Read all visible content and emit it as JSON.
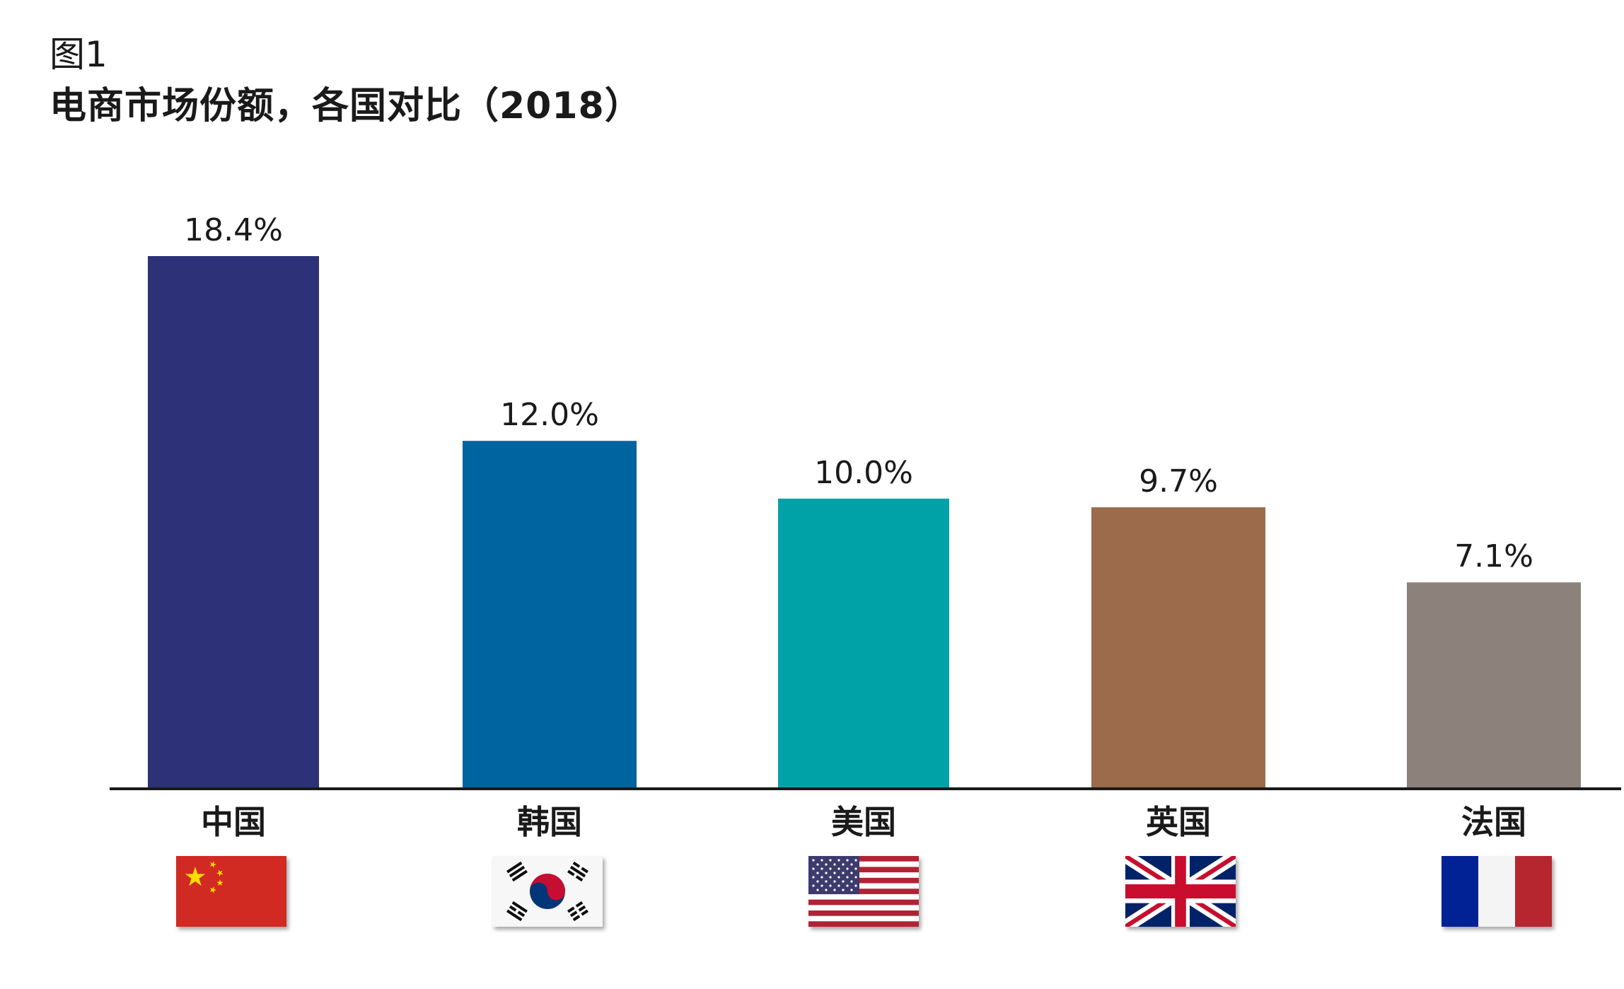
{
  "figure": {
    "label": "图1",
    "title": "电商市场份额，各国对比（2018）"
  },
  "chart_data": {
    "type": "bar",
    "title": "电商市场份额，各国对比（2018）",
    "xlabel": "",
    "ylabel": "",
    "unit": "%",
    "categories": [
      "中国",
      "韩国",
      "美国",
      "英国",
      "法国"
    ],
    "values": [
      18.4,
      12.0,
      10.0,
      9.7,
      7.1
    ],
    "value_labels": [
      "18.4%",
      "12.0%",
      "10.0%",
      "9.7%",
      "7.1%"
    ],
    "ylim": [
      0,
      18.4
    ],
    "colors": [
      "#2d3278",
      "#0064a0",
      "#00a2a8",
      "#9b6b4b",
      "#8c817b"
    ],
    "grid": false,
    "legend": "none",
    "category_icons": [
      "china-flag-icon",
      "south-korea-flag-icon",
      "usa-flag-icon",
      "uk-flag-icon",
      "france-flag-icon"
    ]
  }
}
